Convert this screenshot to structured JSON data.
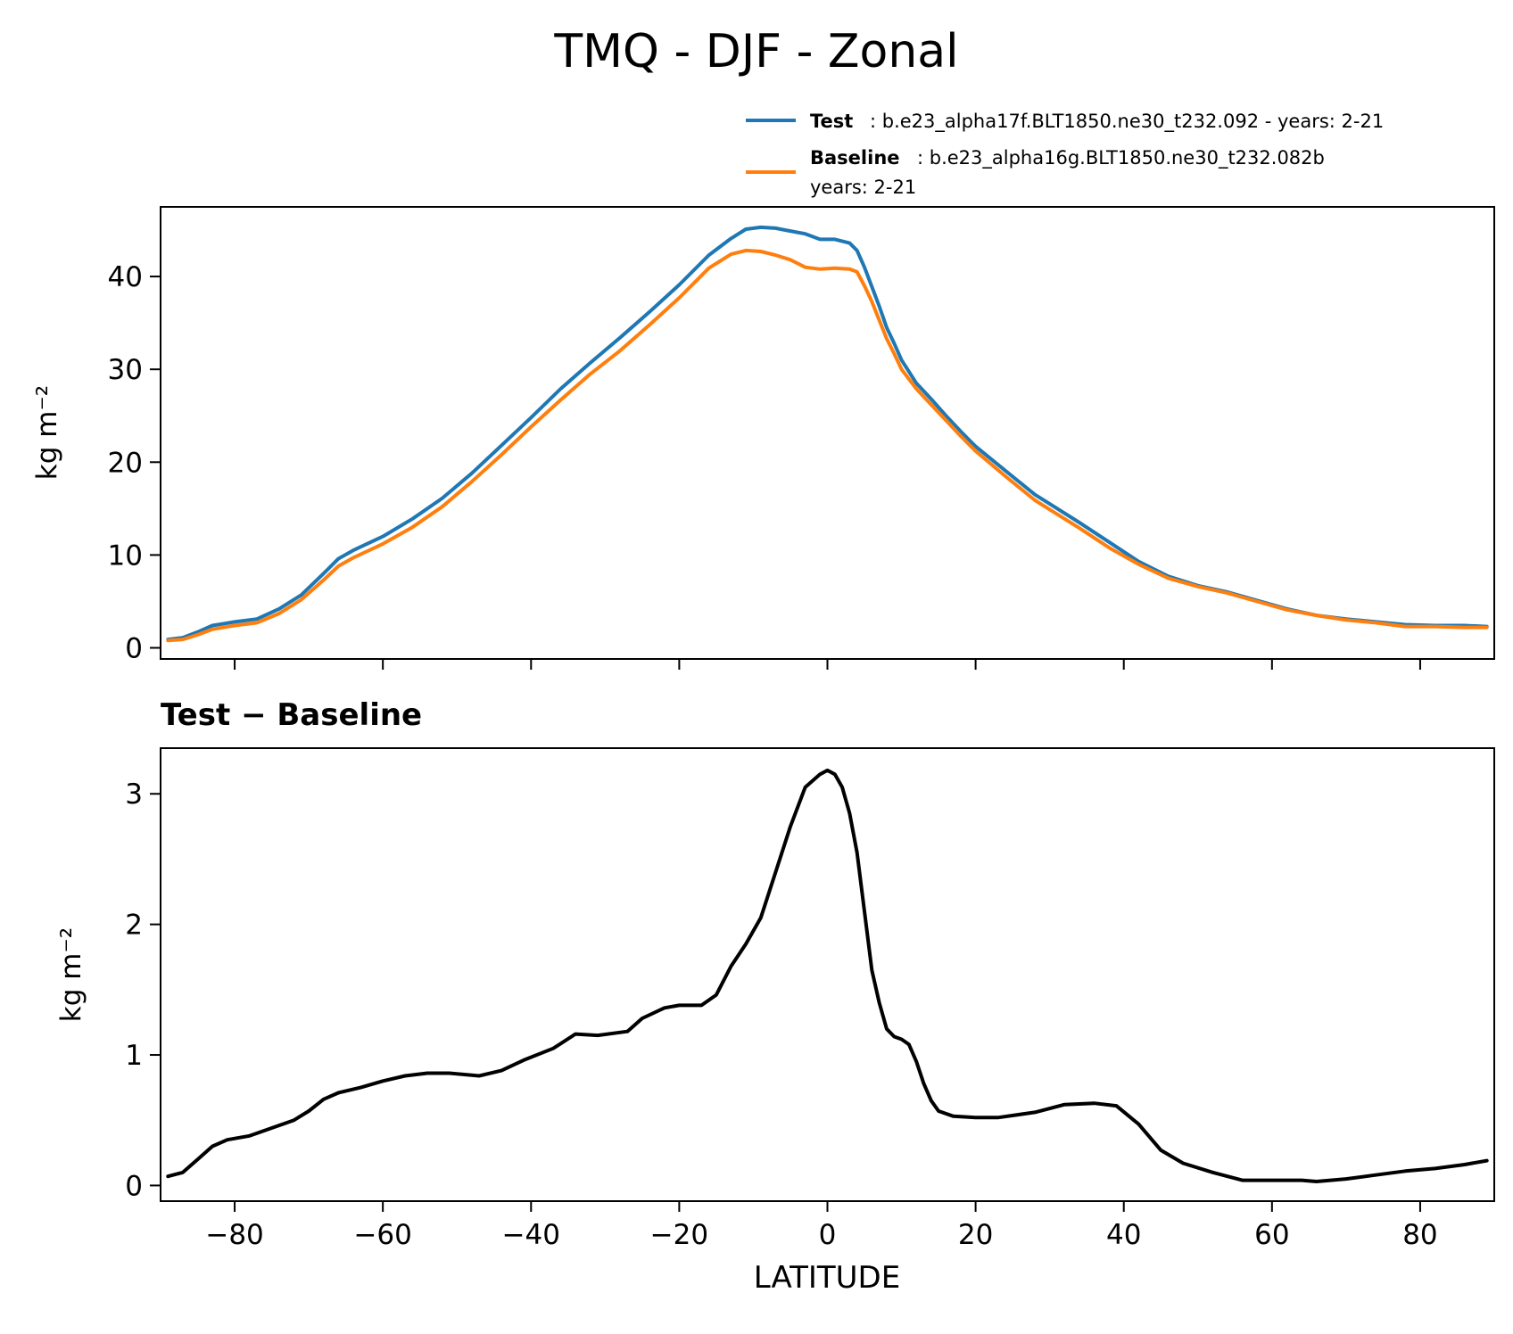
{
  "figure": {
    "title": "TMQ - DJF - Zonal",
    "xlabel": "LATITUDE",
    "legend": {
      "test_key": "Test",
      "test_text": ": b.e23_alpha17f.BLT1850.ne30_t232.092 - years: 2-21",
      "baseline_key": "Baseline",
      "baseline_text": ": b.e23_alpha16g.BLT1850.ne30_t232.082b",
      "baseline_years": "years: 2-21",
      "placement": "above-top-right"
    },
    "colors": {
      "test": "#1f77b4",
      "baseline": "#ff7f0e",
      "diff": "#000000"
    }
  },
  "chart_data": [
    {
      "type": "line",
      "title": "",
      "xlabel": "",
      "ylabel": "kg m⁻²",
      "xlim": [
        -90,
        90
      ],
      "ylim": [
        -1.2,
        47.5
      ],
      "xticks": [
        -80,
        -60,
        -40,
        -20,
        0,
        20,
        40,
        60,
        80
      ],
      "yticks": [
        0,
        10,
        20,
        30,
        40
      ],
      "ytick_labels": [
        "0",
        "10",
        "20",
        "30",
        "40"
      ],
      "x": [
        -89,
        -87,
        -85,
        -83,
        -80,
        -77,
        -74,
        -71,
        -68,
        -66,
        -64,
        -60,
        -56,
        -52,
        -48,
        -44,
        -40,
        -36,
        -32,
        -28,
        -24,
        -20,
        -16,
        -13,
        -11,
        -9,
        -7,
        -5,
        -3,
        -1,
        1,
        3,
        4,
        5,
        6,
        7,
        8,
        9,
        10,
        12,
        14,
        16,
        18,
        20,
        24,
        28,
        30,
        34,
        38,
        42,
        46,
        50,
        54,
        58,
        62,
        66,
        70,
        74,
        78,
        82,
        86,
        89
      ],
      "series": [
        {
          "name": "Test",
          "values": [
            0.9,
            1.1,
            1.7,
            2.4,
            2.8,
            3.1,
            4.2,
            5.7,
            8.0,
            9.6,
            10.5,
            12.0,
            13.9,
            16.1,
            18.8,
            21.8,
            24.8,
            27.9,
            30.7,
            33.4,
            36.2,
            39.1,
            42.3,
            44.1,
            45.1,
            45.3,
            45.2,
            44.9,
            44.6,
            44.0,
            44.0,
            43.6,
            42.8,
            41.0,
            38.9,
            36.8,
            34.5,
            32.8,
            31.0,
            28.5,
            26.8,
            25.0,
            23.3,
            21.7,
            19.1,
            16.5,
            15.5,
            13.5,
            11.4,
            9.3,
            7.7,
            6.7,
            6.0,
            5.1,
            4.2,
            3.5,
            3.1,
            2.8,
            2.5,
            2.4,
            2.4,
            2.3
          ]
        },
        {
          "name": "Baseline",
          "values": [
            0.8,
            0.9,
            1.4,
            2.0,
            2.4,
            2.7,
            3.7,
            5.2,
            7.3,
            8.8,
            9.7,
            11.2,
            13.0,
            15.2,
            17.9,
            20.8,
            23.8,
            26.7,
            29.5,
            32.0,
            34.8,
            37.7,
            40.9,
            42.4,
            42.8,
            42.7,
            42.3,
            41.8,
            41.0,
            40.8,
            40.9,
            40.8,
            40.5,
            39.0,
            37.3,
            35.3,
            33.3,
            31.7,
            30.0,
            27.9,
            26.2,
            24.5,
            22.8,
            21.2,
            18.5,
            15.9,
            14.9,
            12.9,
            10.8,
            9.0,
            7.5,
            6.6,
            5.9,
            5.0,
            4.1,
            3.5,
            3.0,
            2.7,
            2.3,
            2.3,
            2.2,
            2.2
          ]
        }
      ]
    },
    {
      "type": "line",
      "title": "Test − Baseline",
      "xlabel": "LATITUDE",
      "ylabel": "kg m⁻²",
      "xlim": [
        -90,
        90
      ],
      "ylim": [
        -0.12,
        3.35
      ],
      "xticks": [
        -80,
        -60,
        -40,
        -20,
        0,
        20,
        40,
        60,
        80
      ],
      "xtick_labels": [
        "−80",
        "−60",
        "−40",
        "−20",
        "0",
        "20",
        "40",
        "60",
        "80"
      ],
      "yticks": [
        0,
        1,
        2,
        3
      ],
      "ytick_labels": [
        "0",
        "1",
        "2",
        "3"
      ],
      "x": [
        -89,
        -87,
        -85,
        -83,
        -81,
        -78,
        -75,
        -72,
        -70,
        -68,
        -66,
        -63,
        -60,
        -57,
        -54,
        -51,
        -47,
        -44,
        -41,
        -37,
        -34,
        -31,
        -27,
        -25,
        -22,
        -20,
        -17,
        -15,
        -13,
        -11,
        -9,
        -7,
        -5,
        -3,
        -1,
        0,
        1,
        2,
        3,
        4,
        5,
        6,
        7,
        8,
        9,
        10,
        11,
        12,
        13,
        14,
        15,
        17,
        20,
        23,
        28,
        32,
        36,
        39,
        42,
        45,
        48,
        52,
        56,
        60,
        64,
        66,
        70,
        74,
        78,
        82,
        86,
        89
      ],
      "series": [
        {
          "name": "Test − Baseline",
          "values": [
            0.07,
            0.1,
            0.2,
            0.3,
            0.35,
            0.38,
            0.44,
            0.5,
            0.57,
            0.66,
            0.71,
            0.75,
            0.8,
            0.84,
            0.86,
            0.86,
            0.84,
            0.88,
            0.96,
            1.05,
            1.16,
            1.15,
            1.18,
            1.28,
            1.36,
            1.38,
            1.38,
            1.46,
            1.68,
            1.85,
            2.05,
            2.4,
            2.75,
            3.05,
            3.15,
            3.18,
            3.15,
            3.05,
            2.85,
            2.55,
            2.1,
            1.65,
            1.4,
            1.2,
            1.14,
            1.12,
            1.08,
            0.95,
            0.78,
            0.65,
            0.57,
            0.53,
            0.52,
            0.52,
            0.56,
            0.62,
            0.63,
            0.61,
            0.47,
            0.27,
            0.17,
            0.1,
            0.04,
            0.04,
            0.04,
            0.03,
            0.05,
            0.08,
            0.11,
            0.13,
            0.16,
            0.19
          ]
        }
      ]
    }
  ]
}
